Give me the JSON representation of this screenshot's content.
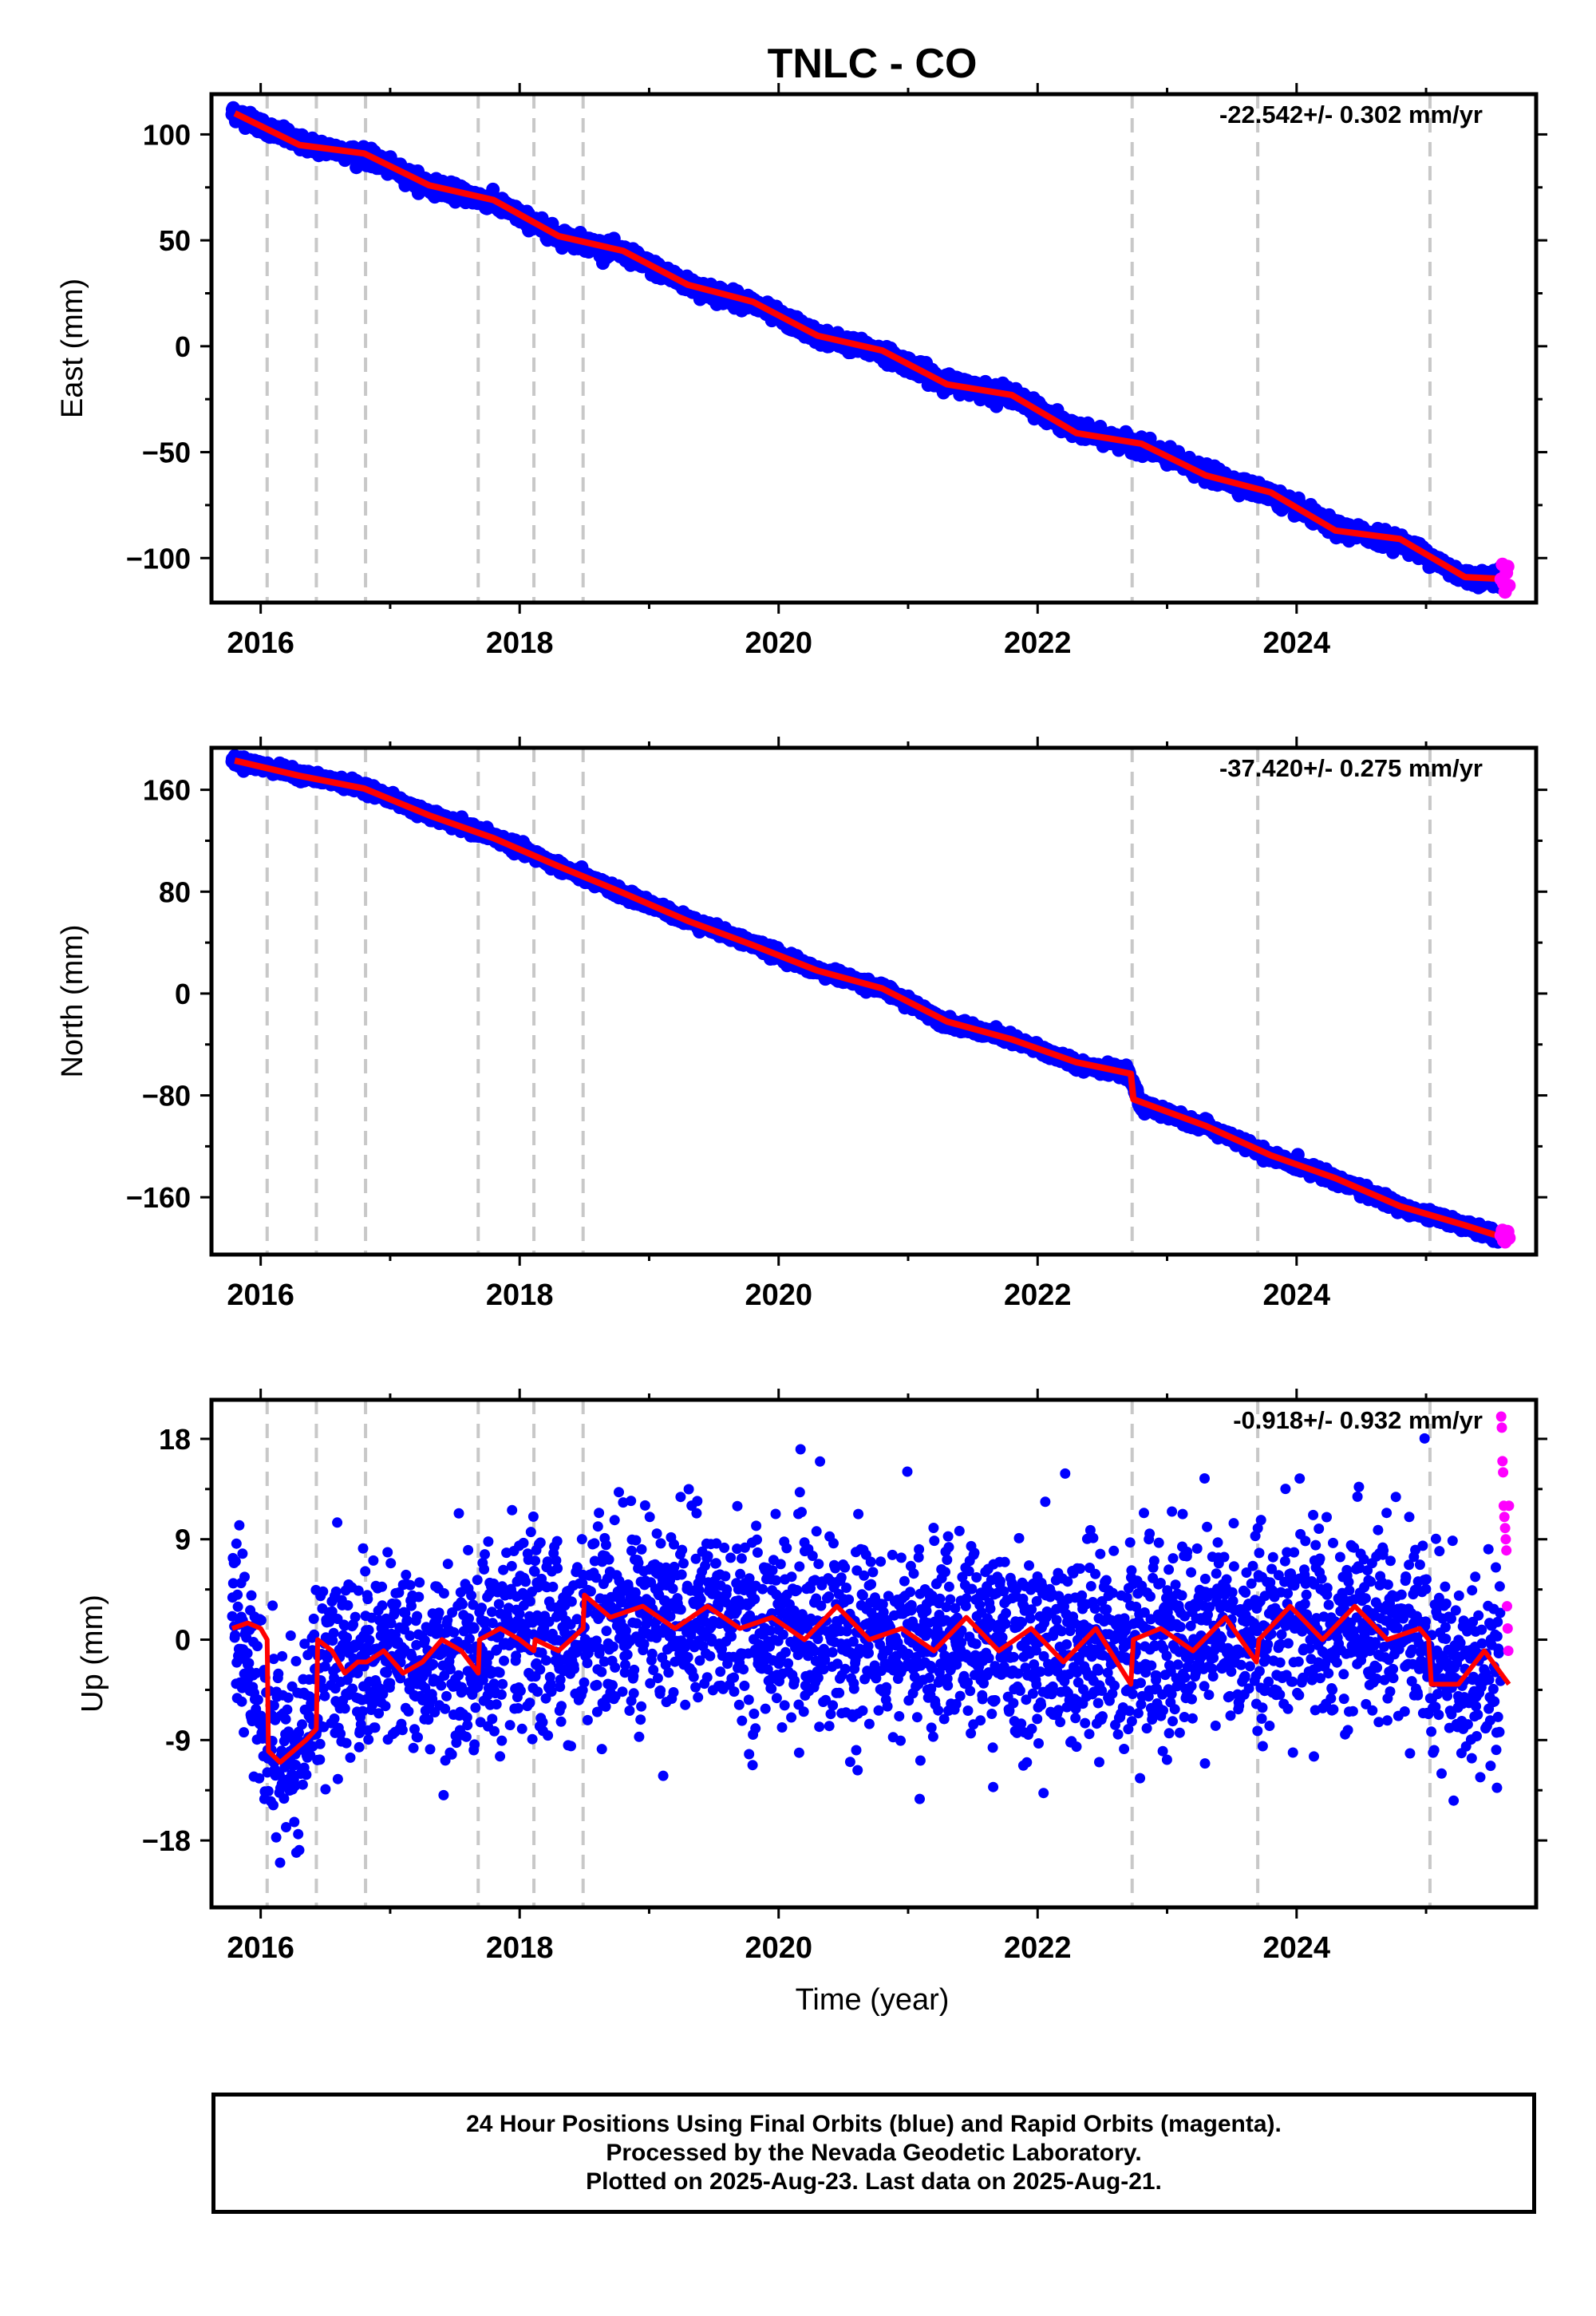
{
  "title": "TNLC - CO",
  "xlabel": "Time (year)",
  "x_ticks": [
    2016,
    2018,
    2020,
    2022,
    2024
  ],
  "x_range": [
    2015.62,
    2025.85
  ],
  "event_lines": [
    2016.05,
    2016.43,
    2016.81,
    2017.68,
    2018.11,
    2018.49,
    2022.73,
    2023.7,
    2025.03
  ],
  "colors": {
    "final_orbits": "#0000ff",
    "rapid_orbits": "#ff00ff",
    "model": "#ff0000",
    "event_line": "#c8c8c8"
  },
  "chart_data": [
    {
      "type": "scatter",
      "component": "East",
      "ylabel": "East (mm)",
      "rate": "-22.542+/- 0.302 mm/yr",
      "ylim": [
        -121,
        119
      ],
      "y_ticks": [
        100,
        50,
        0,
        -50,
        -100
      ],
      "y_tick_labels": [
        "100",
        "50",
        "0",
        "−50",
        "−100"
      ],
      "x_data_range": [
        2015.78,
        2025.64
      ],
      "series": [
        {
          "name": "Final Orbits",
          "role": "final",
          "x": [
            2015.8,
            2016.3,
            2016.8,
            2017.3,
            2017.8,
            2018.3,
            2018.8,
            2019.3,
            2019.8,
            2020.3,
            2020.8,
            2021.3,
            2021.8,
            2022.3,
            2022.8,
            2023.3,
            2023.8,
            2024.3,
            2024.8,
            2025.3,
            2025.6
          ],
          "y": [
            110,
            96,
            90,
            76,
            68,
            52,
            44,
            29,
            20,
            5,
            -3,
            -17,
            -23,
            -40,
            -47,
            -60,
            -70,
            -86,
            -92,
            -109,
            -110
          ]
        },
        {
          "name": "Rapid Orbits",
          "role": "rapid",
          "x": [
            2025.58,
            2025.59,
            2025.6,
            2025.61,
            2025.62,
            2025.63,
            2025.64
          ],
          "y": [
            -110,
            -103,
            -112,
            -116,
            -107,
            -104,
            -113
          ]
        },
        {
          "name": "Model",
          "role": "model",
          "x": [
            2015.8,
            2016.3,
            2016.8,
            2017.3,
            2017.8,
            2018.3,
            2018.8,
            2019.3,
            2019.8,
            2020.3,
            2020.8,
            2021.3,
            2021.8,
            2022.3,
            2022.8,
            2023.3,
            2023.8,
            2024.3,
            2024.8,
            2025.3,
            2025.64
          ],
          "y": [
            110,
            95,
            91,
            76,
            69,
            52,
            45,
            29,
            21,
            5,
            -2,
            -18,
            -23,
            -41,
            -46,
            -61,
            -69,
            -87,
            -91,
            -109,
            -110
          ]
        }
      ]
    },
    {
      "type": "scatter",
      "component": "North",
      "ylabel": "North (mm)",
      "rate": "-37.420+/- 0.275 mm/yr",
      "ylim": [
        -205,
        193
      ],
      "y_ticks": [
        160,
        80,
        0,
        -80,
        -160
      ],
      "y_tick_labels": [
        "160",
        "80",
        "0",
        "−80",
        "−160"
      ],
      "x_data_range": [
        2015.78,
        2025.64
      ],
      "series": [
        {
          "name": "Final Orbits",
          "role": "final",
          "x": [
            2015.8,
            2016.3,
            2016.8,
            2017.3,
            2017.8,
            2018.3,
            2018.8,
            2019.3,
            2019.8,
            2020.3,
            2020.8,
            2021.3,
            2021.8,
            2022.3,
            2022.7,
            2022.8,
            2023.3,
            2023.8,
            2024.3,
            2024.8,
            2025.3,
            2025.6
          ],
          "y": [
            183,
            172,
            162,
            140,
            123,
            100,
            78,
            58,
            39,
            18,
            4,
            -23,
            -36,
            -55,
            -63,
            -88,
            -104,
            -128,
            -145,
            -168,
            -182,
            -193
          ]
        },
        {
          "name": "Rapid Orbits",
          "role": "rapid",
          "x": [
            2025.58,
            2025.59,
            2025.6,
            2025.61,
            2025.62,
            2025.63,
            2025.64
          ],
          "y": [
            -190,
            -186,
            -194,
            -195,
            -189,
            -187,
            -192
          ]
        },
        {
          "name": "Model",
          "role": "model",
          "x": [
            2015.8,
            2016.3,
            2016.8,
            2017.3,
            2017.8,
            2018.3,
            2018.8,
            2019.3,
            2019.8,
            2020.3,
            2020.8,
            2021.3,
            2021.8,
            2022.3,
            2022.72,
            2022.74,
            2023.3,
            2023.8,
            2024.3,
            2024.8,
            2025.3,
            2025.64
          ],
          "y": [
            183,
            171,
            161,
            140,
            122,
            100,
            79,
            57,
            38,
            18,
            4,
            -22,
            -36,
            -54,
            -63,
            -83,
            -104,
            -127,
            -145,
            -167,
            -182,
            -193
          ]
        }
      ]
    },
    {
      "type": "scatter",
      "component": "Up",
      "ylabel": "Up (mm)",
      "rate": "-0.918+/- 0.932 mm/yr",
      "ylim": [
        -24,
        21.5
      ],
      "y_ticks": [
        18,
        9,
        0,
        -9,
        -18
      ],
      "y_tick_labels": [
        "18",
        "9",
        "0",
        "-9",
        "−18"
      ],
      "x_data_range": [
        2015.78,
        2025.64
      ],
      "scatter_sd_mm": 4.2,
      "series": [
        {
          "name": "Final Orbits",
          "role": "final",
          "x": [
            2015.8,
            2016.1,
            2016.3,
            2016.5,
            2016.9,
            2017.3,
            2017.7,
            2018.1,
            2018.5,
            2018.9,
            2019.5,
            2020.0,
            2020.5,
            2021.0,
            2021.5,
            2022.0,
            2022.5,
            2023.0,
            2023.5,
            2024.0,
            2024.5,
            2025.0,
            2025.3,
            2025.6
          ],
          "y": [
            1,
            -9,
            -10,
            -2,
            -1,
            -2,
            -1,
            0,
            1,
            2,
            2,
            1,
            1,
            0,
            0,
            -1,
            -1,
            0,
            1,
            1,
            2,
            0,
            -4,
            -3
          ]
        },
        {
          "name": "Rapid Orbits",
          "role": "rapid",
          "x": [
            2025.58,
            2025.585,
            2025.59,
            2025.595,
            2025.6,
            2025.605,
            2025.61,
            2025.615,
            2025.62,
            2025.625,
            2025.63,
            2025.635,
            2025.64
          ],
          "y": [
            20,
            19,
            16,
            15,
            12,
            11,
            10,
            9,
            8,
            3,
            1,
            -1,
            12
          ]
        },
        {
          "name": "Model",
          "role": "model",
          "x": [
            2015.78,
            2015.9,
            2016.0,
            2016.05,
            2016.06,
            2016.15,
            2016.25,
            2016.35,
            2016.43,
            2016.44,
            2016.55,
            2016.65,
            2016.75,
            2016.81,
            2016.82,
            2016.95,
            2017.1,
            2017.25,
            2017.4,
            2017.55,
            2017.68,
            2017.69,
            2017.85,
            2018.0,
            2018.11,
            2018.12,
            2018.3,
            2018.49,
            2018.5,
            2018.7,
            2018.95,
            2019.2,
            2019.45,
            2019.7,
            2019.95,
            2020.2,
            2020.45,
            2020.7,
            2020.95,
            2021.2,
            2021.45,
            2021.7,
            2021.95,
            2022.2,
            2022.45,
            2022.72,
            2022.74,
            2022.95,
            2023.2,
            2023.45,
            2023.69,
            2023.71,
            2023.95,
            2024.2,
            2024.45,
            2024.7,
            2024.95,
            2025.02,
            2025.04,
            2025.25,
            2025.45,
            2025.64
          ],
          "y": [
            1,
            1.5,
            1,
            0,
            -10,
            -11,
            -10,
            -9,
            -8,
            0,
            -1,
            -3,
            -2,
            -2,
            -2,
            -1,
            -3,
            -2,
            0,
            -1,
            -3,
            0,
            1,
            0,
            -1,
            0,
            -1,
            1,
            4,
            2,
            3,
            1,
            3,
            1,
            2,
            0,
            3,
            0,
            1,
            -1,
            2,
            -1,
            1,
            -2,
            1,
            -4,
            0,
            1,
            -1,
            2,
            -2,
            0,
            3,
            0,
            3,
            0,
            1,
            0,
            -4,
            -4,
            -1,
            -4
          ]
        }
      ]
    }
  ],
  "footer": {
    "line1": "24 Hour Positions Using Final Orbits (blue) and Rapid Orbits (magenta).",
    "line2": "Processed by the Nevada Geodetic Laboratory.",
    "line3": "Plotted on 2025-Aug-23. Last data on 2025-Aug-21."
  }
}
